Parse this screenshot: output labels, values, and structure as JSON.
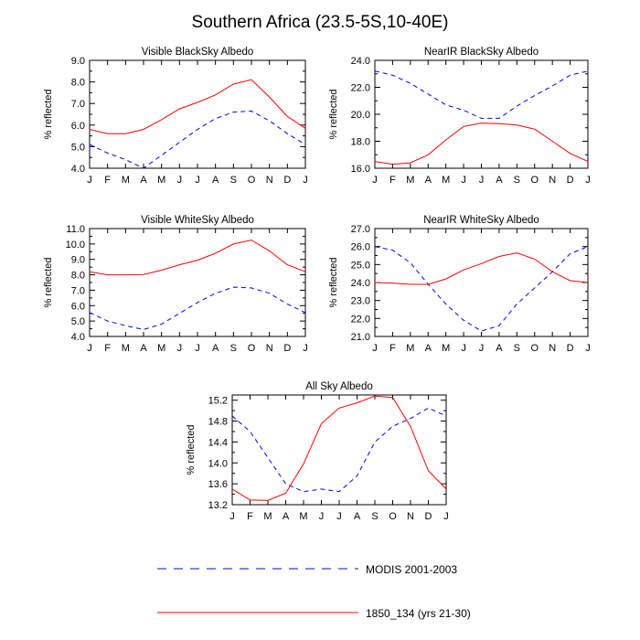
{
  "title": "Southern Africa (23.5-5S,10-40E)",
  "legend": [
    {
      "label": "MODIS 2001-2003",
      "color": "#0000ff",
      "dash": "dashed"
    },
    {
      "label": "1850_134 (yrs 21-30)",
      "color": "#ff0000",
      "dash": "solid"
    }
  ],
  "chart_data": [
    {
      "type": "line",
      "title": "Visible BlackSky Albedo",
      "ylabel": "% reflected",
      "x": [
        "J",
        "F",
        "M",
        "A",
        "M",
        "J",
        "J",
        "A",
        "S",
        "O",
        "N",
        "D",
        "J"
      ],
      "ylim": [
        4.0,
        9.0
      ],
      "yticks": [
        "4.0",
        "5.0",
        "6.0",
        "7.0",
        "8.0",
        "9.0"
      ],
      "series": [
        {
          "name": "MODIS 2001-2003",
          "values": [
            5.1,
            4.7,
            4.4,
            4.0,
            4.6,
            5.2,
            5.8,
            6.3,
            6.6,
            6.65,
            6.2,
            5.6,
            5.1
          ]
        },
        {
          "name": "1850_134 (yrs 21-30)",
          "values": [
            5.8,
            5.6,
            5.6,
            5.8,
            6.25,
            6.75,
            7.05,
            7.4,
            7.9,
            8.1,
            7.3,
            6.4,
            5.85
          ]
        }
      ]
    },
    {
      "type": "line",
      "title": "NearIR BlackSky Albedo",
      "ylabel": "% reflected",
      "x": [
        "J",
        "F",
        "M",
        "A",
        "M",
        "J",
        "J",
        "A",
        "S",
        "O",
        "N",
        "D",
        "J"
      ],
      "ylim": [
        16.0,
        24.0
      ],
      "yticks": [
        "16.0",
        "18.0",
        "20.0",
        "22.0",
        "24.0"
      ],
      "series": [
        {
          "name": "MODIS 2001-2003",
          "values": [
            23.2,
            22.9,
            22.3,
            21.5,
            20.7,
            20.3,
            19.7,
            19.7,
            20.6,
            21.4,
            22.1,
            22.9,
            23.2
          ]
        },
        {
          "name": "1850_134 (yrs 21-30)",
          "values": [
            16.5,
            16.3,
            16.4,
            17.0,
            18.1,
            19.1,
            19.35,
            19.3,
            19.2,
            18.9,
            18.0,
            17.1,
            16.5
          ]
        }
      ]
    },
    {
      "type": "line",
      "title": "Visible WhiteSky Albedo",
      "ylabel": "% reflected",
      "x": [
        "J",
        "F",
        "M",
        "A",
        "M",
        "J",
        "J",
        "A",
        "S",
        "O",
        "N",
        "D",
        "J"
      ],
      "ylim": [
        4.0,
        11.0
      ],
      "yticks": [
        "4.0",
        "5.0",
        "6.0",
        "7.0",
        "8.0",
        "9.0",
        "10.0",
        "11.0"
      ],
      "series": [
        {
          "name": "MODIS 2001-2003",
          "values": [
            5.55,
            5.0,
            4.7,
            4.45,
            4.8,
            5.5,
            6.2,
            6.8,
            7.2,
            7.15,
            6.8,
            6.1,
            5.55
          ]
        },
        {
          "name": "1850_134 (yrs 21-30)",
          "values": [
            8.2,
            8.0,
            8.0,
            8.02,
            8.3,
            8.65,
            8.95,
            9.4,
            10.0,
            10.25,
            9.55,
            8.65,
            8.2
          ]
        }
      ]
    },
    {
      "type": "line",
      "title": "NearIR WhiteSky Albedo",
      "ylabel": "% reflected",
      "x": [
        "J",
        "F",
        "M",
        "A",
        "M",
        "J",
        "J",
        "A",
        "S",
        "O",
        "N",
        "D",
        "J"
      ],
      "ylim": [
        21.0,
        27.0
      ],
      "yticks": [
        "21.0",
        "22.0",
        "23.0",
        "24.0",
        "25.0",
        "26.0",
        "27.0"
      ],
      "series": [
        {
          "name": "MODIS 2001-2003",
          "values": [
            26.0,
            25.8,
            25.1,
            23.9,
            22.8,
            21.9,
            21.3,
            21.6,
            22.8,
            23.7,
            24.6,
            25.6,
            26.0
          ]
        },
        {
          "name": "1850_134 (yrs 21-30)",
          "values": [
            24.0,
            23.97,
            23.9,
            23.9,
            24.2,
            24.7,
            25.05,
            25.45,
            25.65,
            25.3,
            24.6,
            24.1,
            24.0
          ]
        }
      ]
    },
    {
      "type": "line",
      "title": "All Sky Albedo",
      "ylabel": "% reflected",
      "x": [
        "J",
        "F",
        "M",
        "A",
        "M",
        "J",
        "J",
        "A",
        "S",
        "O",
        "N",
        "D",
        "J"
      ],
      "ylim": [
        13.2,
        15.3
      ],
      "yticks": [
        "13.2",
        "13.6",
        "14.0",
        "14.4",
        "14.8",
        "15.2"
      ],
      "series": [
        {
          "name": "MODIS 2001-2003",
          "values": [
            14.9,
            14.6,
            14.1,
            13.6,
            13.45,
            13.5,
            13.45,
            13.75,
            14.4,
            14.7,
            14.85,
            15.05,
            14.9
          ]
        },
        {
          "name": "1850_134 (yrs 21-30)",
          "values": [
            13.5,
            13.29,
            13.28,
            13.42,
            13.98,
            14.75,
            15.05,
            15.15,
            15.28,
            15.25,
            14.7,
            13.85,
            13.5
          ]
        }
      ]
    }
  ]
}
